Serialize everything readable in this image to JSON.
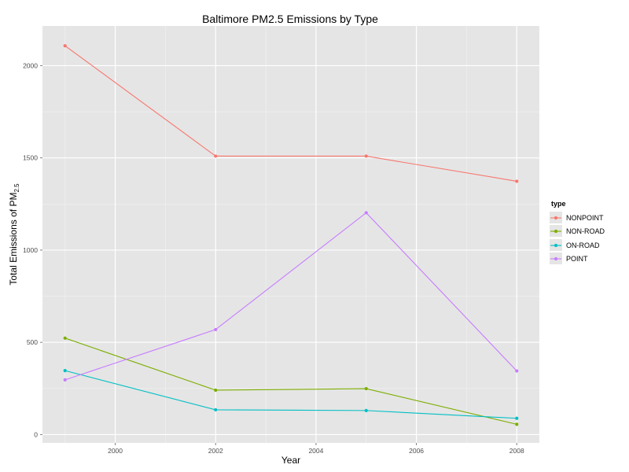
{
  "chart_data": {
    "type": "line",
    "title": "Baltimore PM2.5 Emissions by Type",
    "xlabel": "Year",
    "ylabel_main": "Total Emissions of PM",
    "ylabel_sub": "2.5",
    "x": [
      1999,
      2002,
      2005,
      2008
    ],
    "xlim": [
      1998.55,
      2008.45
    ],
    "ylim": [
      -45,
      2215
    ],
    "x_ticks": [
      2000,
      2002,
      2004,
      2006,
      2008
    ],
    "y_ticks": [
      0,
      500,
      1000,
      1500,
      2000
    ],
    "grid": true,
    "legend_title": "type",
    "legend_position": "right",
    "series": [
      {
        "name": "NONPOINT",
        "color": "#F8766D",
        "values": [
          2107.6,
          1509.5,
          1509.5,
          1373.2
        ]
      },
      {
        "name": "NON-ROAD",
        "color": "#7CAE00",
        "values": [
          522.9,
          240.8,
          248.9,
          55.8
        ]
      },
      {
        "name": "ON-ROAD",
        "color": "#00BFC4",
        "values": [
          346.8,
          134.3,
          130.4,
          88.3
        ]
      },
      {
        "name": "POINT",
        "color": "#C77CFF",
        "values": [
          296.8,
          569.3,
          1202.5,
          344.98
        ]
      }
    ]
  }
}
